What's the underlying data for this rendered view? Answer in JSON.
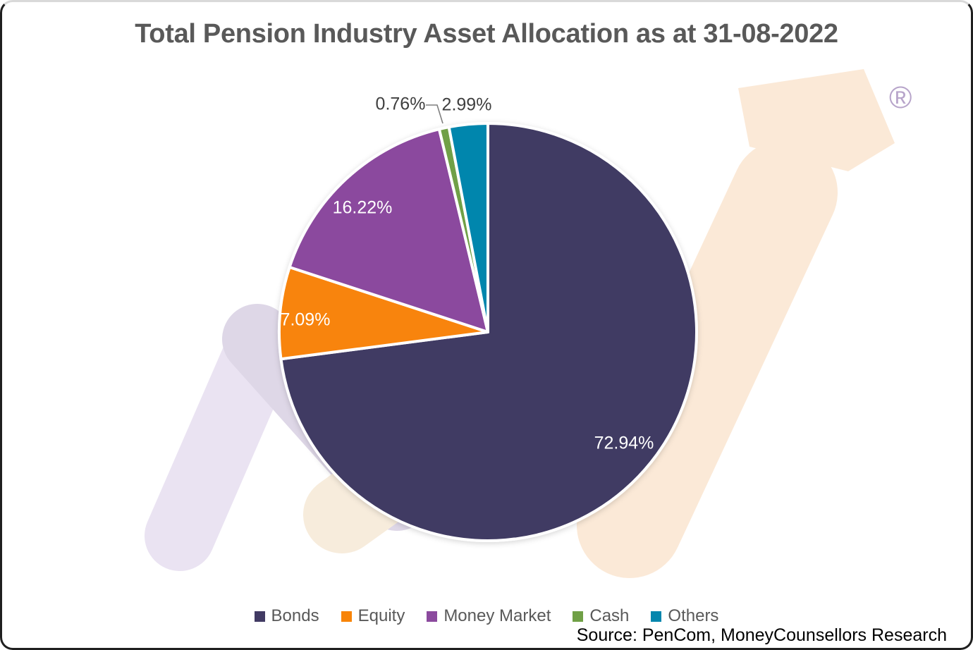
{
  "chart_data": {
    "type": "pie",
    "title": "Total Pension Industry Asset Allocation as at 31-08-2022",
    "unit": "percent",
    "direction": "clockwise",
    "start_angle_deg": 0,
    "total": 100,
    "legend_position": "bottom",
    "slices": [
      {
        "label": "Bonds",
        "value": 72.94,
        "display": "72.94%",
        "color": "#413a63",
        "label_placement": "inside"
      },
      {
        "label": "Equity",
        "value": 7.09,
        "display": "7.09%",
        "color": "#f88408",
        "label_placement": "inside"
      },
      {
        "label": "Money Market",
        "value": 16.22,
        "display": "16.22%",
        "color": "#8b4a9e",
        "label_placement": "inside"
      },
      {
        "label": "Cash",
        "value": 0.76,
        "display": "0.76%",
        "color": "#70a046",
        "label_placement": "outside"
      },
      {
        "label": "Others",
        "value": 2.99,
        "display": "2.99%",
        "color": "#0586ad",
        "label_placement": "outside"
      }
    ]
  },
  "source": "Source: PenCom, MoneyCounsellors Research",
  "watermark": {
    "registered_mark": "®"
  }
}
